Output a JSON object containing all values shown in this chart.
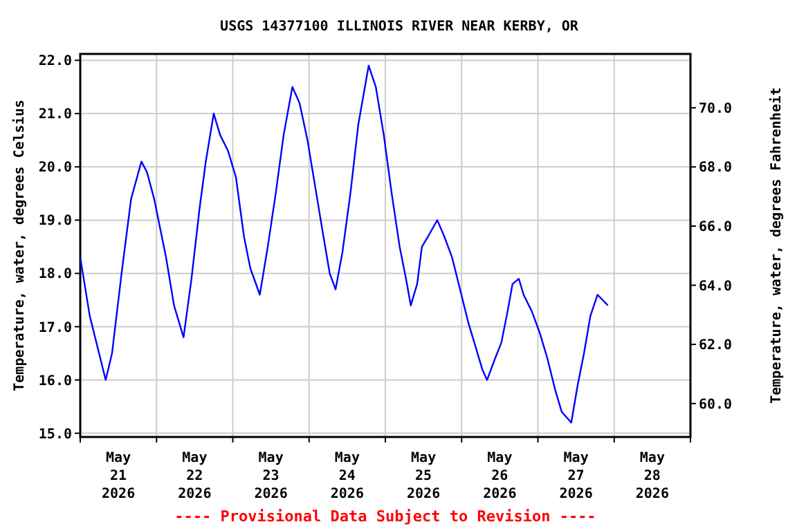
{
  "chart_data": {
    "type": "line",
    "title": "USGS 14377100 ILLINOIS RIVER NEAR KERBY, OR",
    "ylabel": "Temperature, water, degrees Celsius",
    "y2label": "Temperature, water, degrees Fahrenheit",
    "annotations": [
      "---- Provisional Data Subject to Revision ----"
    ],
    "xlim": [
      "2026-05-21T00:00",
      "2026-05-29T00:00"
    ],
    "xticks": [
      {
        "value": "2026-05-21T00:00",
        "label": null
      },
      {
        "value": "2026-05-21T12:00",
        "label": "May\n21\n2026"
      },
      {
        "value": "2026-05-22T00:00",
        "label": null
      },
      {
        "value": "2026-05-22T12:00",
        "label": "May\n22\n2026"
      },
      {
        "value": "2026-05-23T00:00",
        "label": null
      },
      {
        "value": "2026-05-23T12:00",
        "label": "May\n23\n2026"
      },
      {
        "value": "2026-05-24T00:00",
        "label": null
      },
      {
        "value": "2026-05-24T12:00",
        "label": "May\n24\n2026"
      },
      {
        "value": "2026-05-25T00:00",
        "label": null
      },
      {
        "value": "2026-05-25T12:00",
        "label": "May\n25\n2026"
      },
      {
        "value": "2026-05-26T00:00",
        "label": null
      },
      {
        "value": "2026-05-26T12:00",
        "label": "May\n26\n2026"
      },
      {
        "value": "2026-05-27T00:00",
        "label": null
      },
      {
        "value": "2026-05-27T12:00",
        "label": "May\n27\n2026"
      },
      {
        "value": "2026-05-28T00:00",
        "label": null
      },
      {
        "value": "2026-05-28T12:00",
        "label": "May\n28\n2026"
      },
      {
        "value": "2026-05-29T00:00",
        "label": null
      }
    ],
    "ylim": [
      14.93,
      22.12
    ],
    "yticks": [
      {
        "value": 15,
        "label": "15.0"
      },
      {
        "value": 16,
        "label": "16.0"
      },
      {
        "value": 17,
        "label": "17.0"
      },
      {
        "value": 18,
        "label": "18.0"
      },
      {
        "value": 19,
        "label": "19.0"
      },
      {
        "value": 20,
        "label": "20.0"
      },
      {
        "value": 21,
        "label": "21.0"
      },
      {
        "value": 22,
        "label": "22.0"
      }
    ],
    "y2lim": [
      58.87,
      71.82
    ],
    "y2ticks": [
      {
        "value": 60,
        "label": "60.0"
      },
      {
        "value": 62,
        "label": "62.0"
      },
      {
        "value": 64,
        "label": "64.0"
      },
      {
        "value": 66,
        "label": "66.0"
      },
      {
        "value": 68,
        "label": "68.0"
      },
      {
        "value": 70,
        "label": "70.0"
      }
    ],
    "grid": true,
    "marker": "none",
    "line_style": "solid",
    "series": [
      {
        "color": "#0000ff",
        "x": [
          "2026-05-21T00:00",
          "2026-05-21T03:00",
          "2026-05-21T05:30",
          "2026-05-21T08:00",
          "2026-05-21T10:00",
          "2026-05-21T13:00",
          "2026-05-21T16:00",
          "2026-05-21T19:15",
          "2026-05-21T21:00",
          "2026-05-21T23:15",
          "2026-05-22T03:00",
          "2026-05-22T05:30",
          "2026-05-22T08:30",
          "2026-05-22T11:00",
          "2026-05-22T13:30",
          "2026-05-22T15:30",
          "2026-05-22T18:00",
          "2026-05-22T20:00",
          "2026-05-22T22:30",
          "2026-05-23T01:00",
          "2026-05-23T03:30",
          "2026-05-23T05:30",
          "2026-05-23T08:30",
          "2026-05-23T11:00",
          "2026-05-23T13:30",
          "2026-05-23T16:00",
          "2026-05-23T18:45",
          "2026-05-23T21:00",
          "2026-05-23T23:30",
          "2026-05-24T02:00",
          "2026-05-24T04:30",
          "2026-05-24T06:30",
          "2026-05-24T08:20",
          "2026-05-24T10:30",
          "2026-05-24T13:00",
          "2026-05-24T15:30",
          "2026-05-24T18:45",
          "2026-05-24T21:00",
          "2026-05-24T23:30",
          "2026-05-25T02:00",
          "2026-05-25T04:30",
          "2026-05-25T06:30",
          "2026-05-25T08:00",
          "2026-05-25T10:00",
          "2026-05-25T11:30",
          "2026-05-25T13:30",
          "2026-05-25T16:20",
          "2026-05-25T18:30",
          "2026-05-25T21:00",
          "2026-05-25T23:30",
          "2026-05-26T02:00",
          "2026-05-26T04:30",
          "2026-05-26T06:30",
          "2026-05-26T08:00",
          "2026-05-26T10:30",
          "2026-05-26T12:30",
          "2026-05-26T14:30",
          "2026-05-26T16:00",
          "2026-05-26T18:00",
          "2026-05-26T19:30",
          "2026-05-26T22:00",
          "2026-05-27T00:30",
          "2026-05-27T03:00",
          "2026-05-27T05:30",
          "2026-05-27T07:30",
          "2026-05-27T10:30",
          "2026-05-27T12:30",
          "2026-05-27T14:30",
          "2026-05-27T16:30",
          "2026-05-27T18:45",
          "2026-05-27T22:00"
        ],
        "values": [
          18.3,
          17.2,
          16.6,
          16.0,
          16.5,
          18.0,
          19.4,
          20.1,
          19.9,
          19.4,
          18.3,
          17.4,
          16.8,
          17.9,
          19.2,
          20.1,
          21.0,
          20.6,
          20.3,
          19.8,
          18.7,
          18.1,
          17.6,
          18.5,
          19.5,
          20.6,
          21.5,
          21.2,
          20.5,
          19.6,
          18.7,
          18.0,
          17.7,
          18.4,
          19.5,
          20.8,
          21.9,
          21.5,
          20.6,
          19.5,
          18.5,
          17.9,
          17.4,
          17.8,
          18.5,
          18.7,
          19.0,
          18.7,
          18.3,
          17.7,
          17.1,
          16.6,
          16.2,
          16.0,
          16.4,
          16.7,
          17.3,
          17.8,
          17.9,
          17.6,
          17.3,
          16.9,
          16.4,
          15.8,
          15.4,
          15.2,
          15.9,
          16.5,
          17.2,
          17.6,
          17.4
        ]
      }
    ]
  }
}
